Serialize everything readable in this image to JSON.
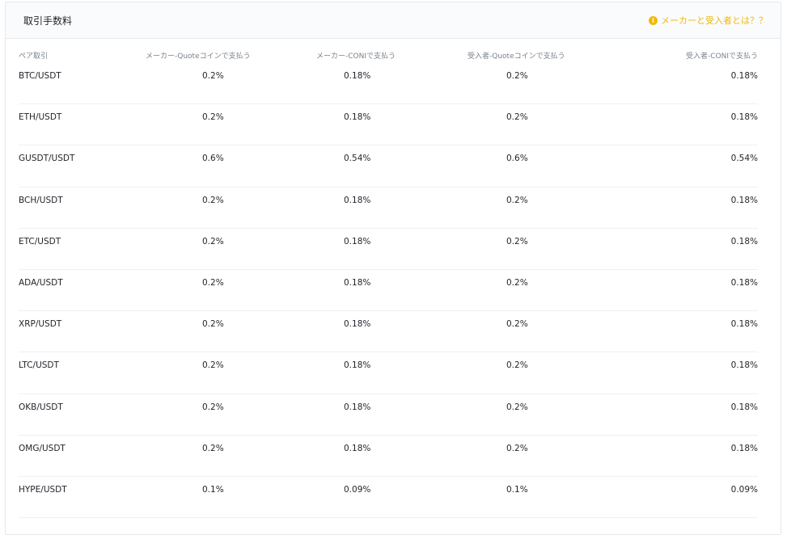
{
  "header": {
    "title": "取引手数料",
    "help_link": "メーカーと受入者とは？？",
    "help_icon": "info-icon",
    "accent_color": "#f0b90b"
  },
  "table": {
    "columns": [
      "ペア取引",
      "メーカー-Quoteコインで支払う",
      "メーカー-CONIで支払う",
      "受入者-Quoteコインで支払う",
      "受入者-CONIで支払う"
    ],
    "rows": [
      {
        "pair": "BTC/USDT",
        "maker_quote": "0.2%",
        "maker_coni": "0.18%",
        "taker_quote": "0.2%",
        "taker_coni": "0.18%"
      },
      {
        "pair": "ETH/USDT",
        "maker_quote": "0.2%",
        "maker_coni": "0.18%",
        "taker_quote": "0.2%",
        "taker_coni": "0.18%"
      },
      {
        "pair": "GUSDT/USDT",
        "maker_quote": "0.6%",
        "maker_coni": "0.54%",
        "taker_quote": "0.6%",
        "taker_coni": "0.54%"
      },
      {
        "pair": "BCH/USDT",
        "maker_quote": "0.2%",
        "maker_coni": "0.18%",
        "taker_quote": "0.2%",
        "taker_coni": "0.18%"
      },
      {
        "pair": "ETC/USDT",
        "maker_quote": "0.2%",
        "maker_coni": "0.18%",
        "taker_quote": "0.2%",
        "taker_coni": "0.18%"
      },
      {
        "pair": "ADA/USDT",
        "maker_quote": "0.2%",
        "maker_coni": "0.18%",
        "taker_quote": "0.2%",
        "taker_coni": "0.18%"
      },
      {
        "pair": "XRP/USDT",
        "maker_quote": "0.2%",
        "maker_coni": "0.18%",
        "taker_quote": "0.2%",
        "taker_coni": "0.18%"
      },
      {
        "pair": "LTC/USDT",
        "maker_quote": "0.2%",
        "maker_coni": "0.18%",
        "taker_quote": "0.2%",
        "taker_coni": "0.18%"
      },
      {
        "pair": "OKB/USDT",
        "maker_quote": "0.2%",
        "maker_coni": "0.18%",
        "taker_quote": "0.2%",
        "taker_coni": "0.18%"
      },
      {
        "pair": "OMG/USDT",
        "maker_quote": "0.2%",
        "maker_coni": "0.18%",
        "taker_quote": "0.2%",
        "taker_coni": "0.18%"
      },
      {
        "pair": "HYPE/USDT",
        "maker_quote": "0.1%",
        "maker_coni": "0.09%",
        "taker_quote": "0.1%",
        "taker_coni": "0.09%"
      }
    ]
  }
}
